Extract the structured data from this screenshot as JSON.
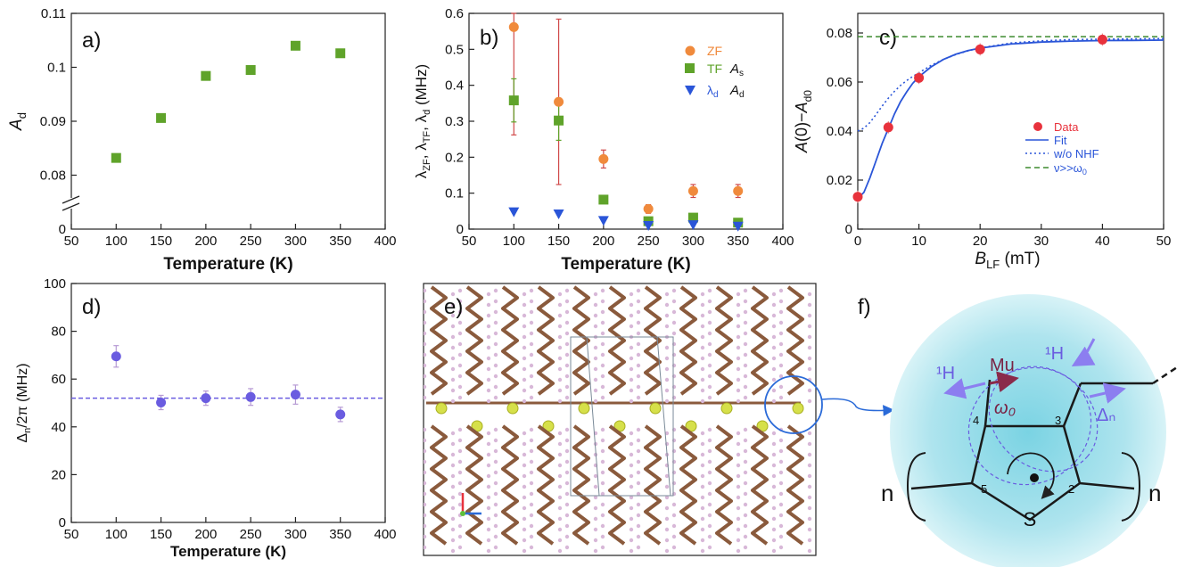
{
  "chart_data": [
    {
      "panel": "a)",
      "type": "scatter",
      "xlabel": "Temperature (K)",
      "ylabel": "A_d",
      "xlim": [
        50,
        400
      ],
      "ylim_lower": [
        0,
        0.02
      ],
      "ylim_upper": [
        0.07,
        0.11
      ],
      "xticks": [
        50,
        100,
        150,
        200,
        250,
        300,
        350,
        400
      ],
      "yticks_upper": [
        0.08,
        0.09,
        0.1,
        0.11
      ],
      "ytick_labels_upper": [
        "0.08",
        "0.09",
        "0.1",
        "0.11"
      ],
      "ytick_lower": "0",
      "color": "#5fa32a",
      "x": [
        100,
        150,
        200,
        250,
        300,
        350
      ],
      "y": [
        0.0832,
        0.0906,
        0.0984,
        0.0995,
        0.104,
        0.1026
      ]
    },
    {
      "panel": "b)",
      "type": "scatter",
      "xlabel": "Temperature (K)",
      "ylabel": "λ_ZF, λ_TF, λ_d (MHz)",
      "xlim": [
        50,
        400
      ],
      "ylim": [
        0,
        0.6
      ],
      "xticks": [
        50,
        100,
        150,
        200,
        250,
        300,
        350,
        400
      ],
      "yticks": [
        0,
        0.1,
        0.2,
        0.3,
        0.4,
        0.5,
        0.6
      ],
      "legend": [
        {
          "label": "ZF",
          "extra": "",
          "marker": "circle",
          "color": "#f08a3c"
        },
        {
          "label": "TF",
          "extra": "A_s",
          "marker": "square",
          "color": "#5fa32a"
        },
        {
          "label": "λ_d",
          "extra": "A_d",
          "marker": "triangle",
          "color": "#2a55d8"
        }
      ],
      "series": [
        {
          "name": "ZF",
          "marker": "circle",
          "color": "#f08a3c",
          "err_color": "#d04848",
          "x": [
            100,
            150,
            200,
            250,
            300,
            350
          ],
          "y": [
            0.562,
            0.354,
            0.195,
            0.056,
            0.106,
            0.106
          ],
          "err": [
            0.3,
            0.23,
            0.025,
            0.012,
            0.018,
            0.018
          ]
        },
        {
          "name": "TF",
          "marker": "square",
          "color": "#5fa32a",
          "err_color": "#5fa32a",
          "x": [
            100,
            150,
            200,
            250,
            300,
            350
          ],
          "y": [
            0.358,
            0.302,
            0.082,
            0.022,
            0.032,
            0.018
          ],
          "err": [
            0.06,
            0.055,
            0.008,
            0.004,
            0.004,
            0.003
          ]
        },
        {
          "name": "λ_d",
          "marker": "triangle",
          "color": "#2a55d8",
          "err_color": "#2a55d8",
          "x": [
            100,
            150,
            200,
            250,
            300,
            350
          ],
          "y": [
            0.048,
            0.042,
            0.024,
            0.01,
            0.012,
            0.008
          ],
          "err": [
            0,
            0,
            0,
            0,
            0,
            0
          ]
        }
      ]
    },
    {
      "panel": "c)",
      "type": "scatter",
      "xlabel": "B_LF (mT)",
      "ylabel": "A(0)−A_d0",
      "xlim": [
        0,
        50
      ],
      "ylim": [
        0,
        0.088
      ],
      "xticks": [
        0,
        10,
        20,
        30,
        40,
        50
      ],
      "yticks": [
        0,
        0.02,
        0.04,
        0.06,
        0.08
      ],
      "ytick_labels": [
        "0",
        "0.02",
        "0.04",
        "0.06",
        "0.08"
      ],
      "data": {
        "name": "Data",
        "color": "#e8323c",
        "x": [
          0,
          5,
          10,
          20,
          40
        ],
        "y": [
          0.0132,
          0.0415,
          0.0617,
          0.0733,
          0.0773
        ],
        "err": [
          0.0025,
          0.0025,
          0.0025,
          0.0025,
          0.0025
        ]
      },
      "fit": {
        "name": "Fit",
        "color": "#2a55d8",
        "x": [
          0,
          1,
          2,
          3,
          4,
          5,
          6,
          7,
          8,
          9,
          10,
          12,
          14,
          16,
          18,
          20,
          25,
          30,
          35,
          40,
          45,
          50
        ],
        "y": [
          0.0125,
          0.015,
          0.021,
          0.028,
          0.035,
          0.041,
          0.047,
          0.052,
          0.056,
          0.0595,
          0.0622,
          0.0662,
          0.0692,
          0.0713,
          0.0728,
          0.0738,
          0.0755,
          0.0763,
          0.0767,
          0.0769,
          0.077,
          0.0771
        ]
      },
      "wo_nhf": {
        "name": "w/o NHF",
        "color": "#2a55d8",
        "x": [
          0,
          1,
          2,
          3,
          4,
          5,
          6,
          7,
          8,
          9,
          10,
          12,
          14,
          16,
          18,
          20,
          25,
          30,
          35,
          40,
          45,
          50
        ],
        "y": [
          0.04,
          0.0412,
          0.0435,
          0.0468,
          0.0502,
          0.0534,
          0.0562,
          0.0586,
          0.0606,
          0.0623,
          0.0638,
          0.0668,
          0.0692,
          0.0712,
          0.0727,
          0.0739,
          0.0759,
          0.0768,
          0.0773,
          0.0775,
          0.0776,
          0.0777
        ]
      },
      "limit": {
        "name": "ν>>ω_0",
        "color": "#3d8a2e",
        "y": 0.0785
      },
      "legend": [
        {
          "label": "Data",
          "style": "dot",
          "color": "#e8323c"
        },
        {
          "label": "Fit",
          "style": "solid",
          "color": "#2a55d8"
        },
        {
          "label": "w/o NHF",
          "style": "dotted",
          "color": "#2a55d8"
        },
        {
          "label": "ν>>ω_0",
          "style": "dashed",
          "color": "#3d8a2e"
        }
      ]
    },
    {
      "panel": "d)",
      "type": "scatter",
      "xlabel": "Temperature (K)",
      "ylabel": "Δ_n/2π (MHz)",
      "xlim": [
        50,
        400
      ],
      "ylim": [
        0,
        100
      ],
      "xticks": [
        50,
        100,
        150,
        200,
        250,
        300,
        350,
        400
      ],
      "yticks": [
        0,
        20,
        40,
        60,
        80,
        100
      ],
      "color": "#6a5ce0",
      "err_color": "#b69ad4",
      "mean_line": 52,
      "x": [
        100,
        150,
        200,
        250,
        300,
        350
      ],
      "y": [
        69.5,
        50.2,
        52.0,
        52.5,
        53.5,
        45.2
      ],
      "err": [
        4.5,
        3.0,
        3.0,
        3.5,
        4.0,
        3.0
      ]
    }
  ],
  "panel_e": {
    "label": "e)"
  },
  "panel_f": {
    "label": "f)",
    "h_left": "¹H",
    "h_right": "¹H",
    "mu": "Mu",
    "omega": "ω₀",
    "delta": "Δₙ",
    "sulfur": "S",
    "n_left": "n",
    "n_right": "n",
    "positions": [
      "2",
      "3",
      "4",
      "5"
    ]
  }
}
